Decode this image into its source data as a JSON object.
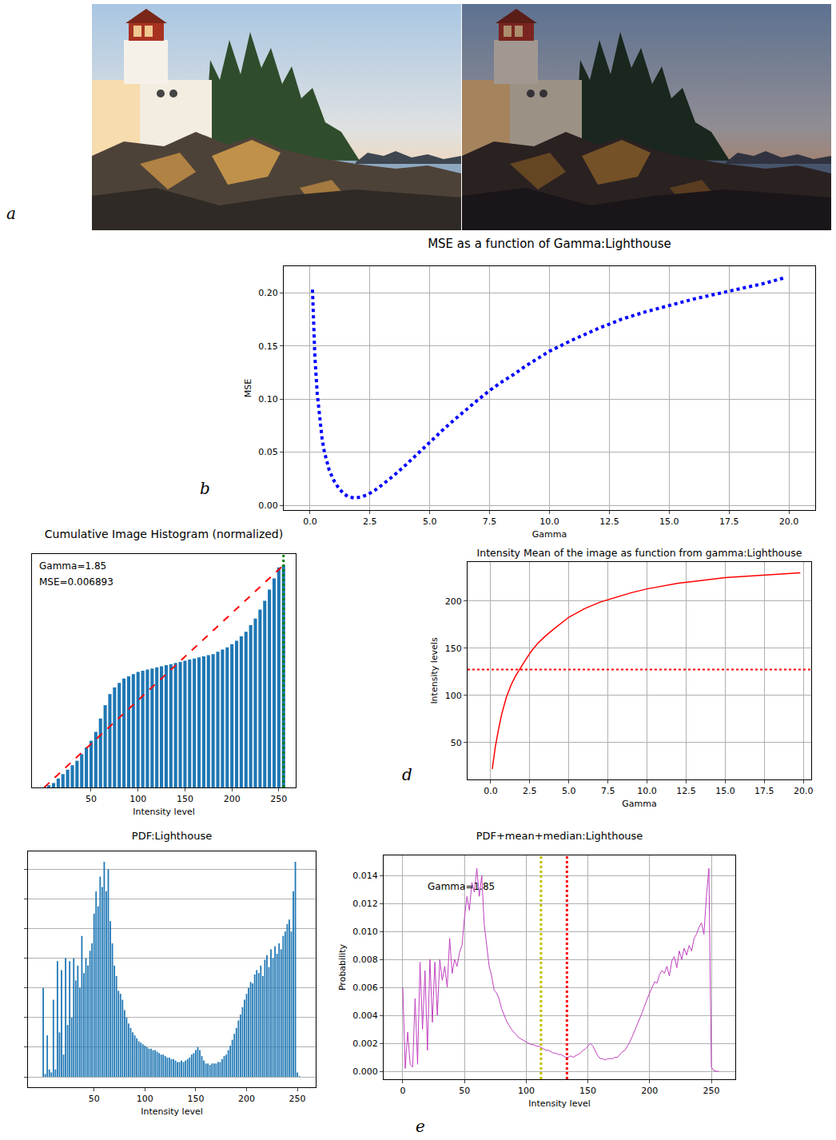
{
  "panel_labels": [
    "a",
    "b",
    "d",
    "e"
  ],
  "chart_data": [
    {
      "type": "line",
      "title": "MSE as a function of Gamma:Lighthouse",
      "x_label": "Gamma",
      "y_label": "MSE",
      "x": [
        0.1,
        0.2,
        0.3,
        0.4,
        0.5,
        0.6,
        0.7,
        0.8,
        1.0,
        1.2,
        1.4,
        1.6,
        1.85,
        2.1,
        2.4,
        2.7,
        3.0,
        3.5,
        4.0,
        4.5,
        5.0,
        5.5,
        6.0,
        6.5,
        7.0,
        7.5,
        8.0,
        8.5,
        9.0,
        9.5,
        10.0,
        11.0,
        12.0,
        13.0,
        14.0,
        15.0,
        16.0,
        17.0,
        18.0,
        19.0,
        19.8
      ],
      "values": [
        0.203,
        0.14,
        0.105,
        0.08,
        0.063,
        0.05,
        0.04,
        0.033,
        0.023,
        0.016,
        0.011,
        0.008,
        0.0069,
        0.0075,
        0.01,
        0.014,
        0.019,
        0.028,
        0.038,
        0.049,
        0.06,
        0.07,
        0.08,
        0.09,
        0.099,
        0.108,
        0.116,
        0.123,
        0.131,
        0.138,
        0.145,
        0.156,
        0.166,
        0.175,
        0.182,
        0.188,
        0.194,
        0.199,
        0.204,
        0.209,
        0.214
      ],
      "color": "#0000ff",
      "line_style": "dotted",
      "xlim": [
        -1.1,
        21.1
      ],
      "ylim": [
        -0.0045,
        0.225
      ],
      "xticks": [
        {
          "value": 0,
          "label": "0.0"
        },
        2.5,
        {
          "value": 5,
          "label": "5.0"
        },
        7.5,
        {
          "value": 10,
          "label": "10.0"
        },
        12.5,
        {
          "value": 15,
          "label": "15.0"
        },
        17.5,
        {
          "value": 20,
          "label": "20.0"
        }
      ],
      "yticks": [
        {
          "value": 0,
          "label": "0.00"
        },
        {
          "value": 0.05,
          "label": "0.05"
        },
        {
          "value": 0.1,
          "label": "0.10"
        },
        {
          "value": 0.15,
          "label": "0.15"
        },
        {
          "value": 0.2,
          "label": "0.20"
        }
      ],
      "grid": true
    },
    {
      "type": "bar",
      "title": "Cumulative Image Histogram (normalized)",
      "x_label": "Intensity level",
      "x": [
        0,
        5,
        10,
        15,
        20,
        25,
        30,
        35,
        40,
        45,
        50,
        55,
        60,
        65,
        70,
        75,
        80,
        85,
        90,
        95,
        100,
        105,
        110,
        115,
        120,
        125,
        130,
        135,
        140,
        145,
        150,
        155,
        160,
        165,
        170,
        175,
        180,
        185,
        190,
        195,
        200,
        205,
        210,
        215,
        220,
        225,
        230,
        235,
        240,
        245,
        250,
        255
      ],
      "values": [
        0.0,
        0.01,
        0.02,
        0.04,
        0.06,
        0.08,
        0.1,
        0.12,
        0.15,
        0.18,
        0.21,
        0.25,
        0.31,
        0.37,
        0.42,
        0.45,
        0.47,
        0.49,
        0.5,
        0.51,
        0.52,
        0.525,
        0.53,
        0.535,
        0.54,
        0.545,
        0.55,
        0.555,
        0.56,
        0.565,
        0.57,
        0.575,
        0.58,
        0.585,
        0.59,
        0.595,
        0.6,
        0.61,
        0.62,
        0.63,
        0.645,
        0.66,
        0.68,
        0.7,
        0.73,
        0.76,
        0.8,
        0.84,
        0.89,
        0.94,
        0.99,
        1.0
      ],
      "color": "#1f77b4",
      "xlim": [
        -13,
        268
      ],
      "ylim": [
        0,
        1.05
      ],
      "xticks": [
        50,
        100,
        150,
        200,
        250
      ],
      "grid": false,
      "tick_labels": "x",
      "ref_line": {
        "x": [
          0,
          255
        ],
        "values": [
          0,
          1
        ],
        "color": "#ff0000",
        "line_style": "dashed"
      },
      "vlines": [
        {
          "value": 255,
          "color": "#008000",
          "line_style": "dotted"
        }
      ],
      "annotations": [
        "Gamma=1.85",
        "MSE=0.006893"
      ]
    },
    {
      "type": "line",
      "title": "Intensity Mean of the image as function from gamma:Lighthouse",
      "x_label": "Gamma",
      "y_label": "Intensity levels",
      "x": [
        0.1,
        0.2,
        0.3,
        0.5,
        0.7,
        1.0,
        1.3,
        1.6,
        1.85,
        2.2,
        2.6,
        3.0,
        3.5,
        4.0,
        5.0,
        6.0,
        7.0,
        8.0,
        9.0,
        10.0,
        11.0,
        12.0,
        13.0,
        14.0,
        15.0,
        16.0,
        17.0,
        18.0,
        19.0,
        19.8
      ],
      "values": [
        22,
        35,
        46,
        64,
        80,
        98,
        111,
        121,
        128,
        137,
        147,
        155,
        163,
        170,
        183,
        192,
        199,
        204,
        209,
        213,
        216,
        219,
        221,
        223,
        225,
        226,
        227,
        228,
        229,
        230
      ],
      "color": "#ff0000",
      "line_style": "solid",
      "xlim": [
        -1.48,
        20.5
      ],
      "ylim": [
        11,
        241.5
      ],
      "xticks": [
        {
          "value": 0,
          "label": "0.0"
        },
        2.5,
        {
          "value": 5,
          "label": "5.0"
        },
        7.5,
        {
          "value": 10,
          "label": "10.0"
        },
        12.5,
        {
          "value": 15,
          "label": "15.0"
        },
        17.5,
        {
          "value": 20,
          "label": "20.0"
        }
      ],
      "yticks": [
        50,
        100,
        150,
        200
      ],
      "grid": true,
      "hlines": [
        {
          "value": 127.5,
          "color": "#ff0000",
          "line_style": "dotted"
        }
      ]
    },
    {
      "type": "bar",
      "title": "PDF:Lighthouse",
      "x_label": "Intensity level",
      "x": [
        0,
        2,
        4,
        6,
        8,
        10,
        12,
        14,
        16,
        18,
        20,
        22,
        24,
        26,
        28,
        30,
        32,
        34,
        36,
        38,
        40,
        42,
        44,
        46,
        48,
        50,
        52,
        54,
        56,
        58,
        60,
        62,
        64,
        66,
        68,
        70,
        72,
        74,
        76,
        78,
        80,
        82,
        84,
        86,
        88,
        90,
        92,
        94,
        96,
        98,
        100,
        102,
        104,
        106,
        108,
        110,
        112,
        114,
        116,
        118,
        120,
        122,
        124,
        126,
        128,
        130,
        132,
        134,
        136,
        138,
        140,
        142,
        144,
        146,
        148,
        150,
        152,
        154,
        156,
        158,
        160,
        162,
        164,
        166,
        168,
        170,
        172,
        174,
        176,
        178,
        180,
        182,
        184,
        186,
        188,
        190,
        192,
        194,
        196,
        198,
        200,
        202,
        204,
        206,
        208,
        210,
        212,
        214,
        216,
        218,
        220,
        222,
        224,
        226,
        228,
        230,
        232,
        234,
        236,
        238,
        240,
        242,
        244,
        246,
        248,
        250,
        252,
        254,
        256
      ],
      "values": [
        0.006,
        0.0002,
        0.0028,
        0.0005,
        0.0003,
        0.0052,
        0.0005,
        0.0078,
        0.003,
        0.0072,
        0.0015,
        0.008,
        0.0035,
        0.0078,
        0.004,
        0.008,
        0.0065,
        0.0075,
        0.006,
        0.0095,
        0.007,
        0.008,
        0.0075,
        0.0085,
        0.009,
        0.011,
        0.0125,
        0.0115,
        0.0135,
        0.0128,
        0.0145,
        0.0125,
        0.014,
        0.0105,
        0.009,
        0.0075,
        0.0068,
        0.0058,
        0.0056,
        0.0052,
        0.0045,
        0.004,
        0.0036,
        0.0033,
        0.003,
        0.0028,
        0.0026,
        0.0024,
        0.0023,
        0.0022,
        0.0021,
        0.002,
        0.0019,
        0.0019,
        0.0018,
        0.0018,
        0.0017,
        0.0016,
        0.0015,
        0.0015,
        0.0014,
        0.0013,
        0.0013,
        0.0012,
        0.0012,
        0.0011,
        0.001,
        0.001,
        0.0011,
        0.001,
        0.0011,
        0.0012,
        0.0013,
        0.0015,
        0.0016,
        0.0018,
        0.002,
        0.0018,
        0.0014,
        0.0011,
        0.0009,
        0.0009,
        0.0008,
        0.0009,
        0.0009,
        0.0009,
        0.001,
        0.001,
        0.0012,
        0.0014,
        0.0015,
        0.0018,
        0.0021,
        0.0025,
        0.0029,
        0.0033,
        0.0038,
        0.0042,
        0.0047,
        0.0052,
        0.0056,
        0.006,
        0.0064,
        0.0063,
        0.0069,
        0.0072,
        0.007,
        0.0075,
        0.0068,
        0.0079,
        0.0082,
        0.0074,
        0.0086,
        0.008,
        0.0088,
        0.0083,
        0.009,
        0.0086,
        0.0095,
        0.0098,
        0.0103,
        0.0106,
        0.0098,
        0.0125,
        0.0145,
        0.0003,
        5e-05,
        0,
        0
      ],
      "color": "#1f77b4",
      "xlim": [
        -15,
        268
      ],
      "ylim": [
        -0.0007,
        0.0152
      ],
      "xticks": [
        50,
        100,
        150,
        200,
        250
      ],
      "yticks": [
        0,
        0.002,
        0.004,
        0.006,
        0.008,
        0.01,
        0.012,
        0.014
      ],
      "grid": "y",
      "tick_labels": "x"
    },
    {
      "type": "line",
      "title": "PDF+mean+median:Lighthouse",
      "x_label": "Intensity level",
      "y_label": "Probability",
      "x": [
        0,
        2,
        4,
        6,
        8,
        10,
        12,
        14,
        16,
        18,
        20,
        22,
        24,
        26,
        28,
        30,
        32,
        34,
        36,
        38,
        40,
        42,
        44,
        46,
        48,
        50,
        52,
        54,
        56,
        58,
        60,
        62,
        64,
        66,
        68,
        70,
        72,
        74,
        76,
        78,
        80,
        82,
        84,
        86,
        88,
        90,
        92,
        94,
        96,
        98,
        100,
        102,
        104,
        106,
        108,
        110,
        112,
        114,
        116,
        118,
        120,
        122,
        124,
        126,
        128,
        130,
        132,
        134,
        136,
        138,
        140,
        142,
        144,
        146,
        148,
        150,
        152,
        154,
        156,
        158,
        160,
        162,
        164,
        166,
        168,
        170,
        172,
        174,
        176,
        178,
        180,
        182,
        184,
        186,
        188,
        190,
        192,
        194,
        196,
        198,
        200,
        202,
        204,
        206,
        208,
        210,
        212,
        214,
        216,
        218,
        220,
        222,
        224,
        226,
        228,
        230,
        232,
        234,
        236,
        238,
        240,
        242,
        244,
        246,
        248,
        250,
        252,
        254,
        256
      ],
      "values": [
        0.006,
        0.0002,
        0.0028,
        0.0005,
        0.0003,
        0.0052,
        0.0005,
        0.0078,
        0.003,
        0.0072,
        0.0015,
        0.008,
        0.0035,
        0.0078,
        0.004,
        0.008,
        0.0065,
        0.0075,
        0.006,
        0.0095,
        0.007,
        0.008,
        0.0075,
        0.0085,
        0.009,
        0.011,
        0.0125,
        0.0115,
        0.0135,
        0.0128,
        0.0145,
        0.0125,
        0.014,
        0.0105,
        0.009,
        0.0075,
        0.0068,
        0.0058,
        0.0056,
        0.0052,
        0.0045,
        0.004,
        0.0036,
        0.0033,
        0.003,
        0.0028,
        0.0026,
        0.0024,
        0.0023,
        0.0022,
        0.0021,
        0.002,
        0.0019,
        0.0019,
        0.0018,
        0.0018,
        0.0017,
        0.0016,
        0.0015,
        0.0015,
        0.0014,
        0.0013,
        0.0013,
        0.0012,
        0.0012,
        0.0011,
        0.001,
        0.001,
        0.0011,
        0.001,
        0.0011,
        0.0012,
        0.0013,
        0.0015,
        0.0016,
        0.0018,
        0.002,
        0.0018,
        0.0014,
        0.0011,
        0.0009,
        0.0009,
        0.0008,
        0.0009,
        0.0009,
        0.0009,
        0.001,
        0.001,
        0.0012,
        0.0014,
        0.0015,
        0.0018,
        0.0021,
        0.0025,
        0.0029,
        0.0033,
        0.0038,
        0.0042,
        0.0047,
        0.0052,
        0.0056,
        0.006,
        0.0064,
        0.0063,
        0.0069,
        0.0072,
        0.007,
        0.0075,
        0.0068,
        0.0079,
        0.0082,
        0.0074,
        0.0086,
        0.008,
        0.0088,
        0.0083,
        0.009,
        0.0086,
        0.0095,
        0.0098,
        0.0103,
        0.0106,
        0.0098,
        0.0125,
        0.0145,
        0.0003,
        5e-05,
        0,
        0
      ],
      "color": "#c040c0",
      "line_style": "solid",
      "xlim": [
        -15.5,
        269.4
      ],
      "ylim": [
        -0.00057,
        0.01543
      ],
      "xticks": [
        0,
        50,
        100,
        150,
        200,
        250
      ],
      "yticks": [
        {
          "value": 0,
          "label": "0.000"
        },
        {
          "value": 0.002,
          "label": "0.002"
        },
        {
          "value": 0.004,
          "label": "0.004"
        },
        {
          "value": 0.006,
          "label": "0.006"
        },
        {
          "value": 0.008,
          "label": "0.008"
        },
        {
          "value": 0.01,
          "label": "0.010"
        },
        {
          "value": 0.012,
          "label": "0.012"
        },
        {
          "value": 0.014,
          "label": "0.014"
        }
      ],
      "grid": true,
      "vlines": [
        {
          "value": 112,
          "color": "#bfbf00",
          "line_style": "dotted"
        },
        {
          "value": 133,
          "color": "#ff0000",
          "line_style": "dotted"
        }
      ],
      "annotations": [
        "Gamma=1.85"
      ]
    }
  ]
}
